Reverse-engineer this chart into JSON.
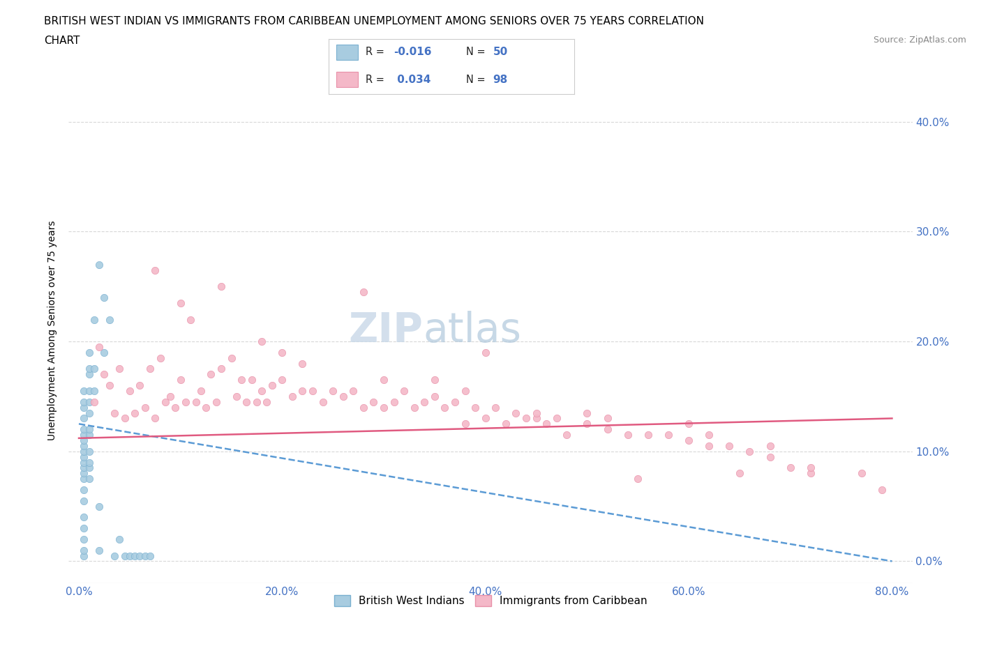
{
  "title_line1": "BRITISH WEST INDIAN VS IMMIGRANTS FROM CARIBBEAN UNEMPLOYMENT AMONG SENIORS OVER 75 YEARS CORRELATION",
  "title_line2": "CHART",
  "source_text": "Source: ZipAtlas.com",
  "ylabel": "Unemployment Among Seniors over 75 years",
  "xlim": [
    -0.01,
    0.82
  ],
  "ylim": [
    -0.02,
    0.44
  ],
  "xticks": [
    0.0,
    0.2,
    0.4,
    0.6,
    0.8
  ],
  "xticklabels": [
    "0.0%",
    "20.0%",
    "40.0%",
    "60.0%",
    "80.0%"
  ],
  "yticks": [
    0.0,
    0.1,
    0.2,
    0.3,
    0.4
  ],
  "yticklabels": [
    "0.0%",
    "10.0%",
    "20.0%",
    "30.0%",
    "40.0%"
  ],
  "blue_color": "#a8cce0",
  "pink_color": "#f4b8c8",
  "blue_edge_color": "#7ab0d0",
  "pink_edge_color": "#e890a8",
  "blue_line_color": "#5b9bd5",
  "pink_line_color": "#e05a80",
  "tick_color": "#4472c4",
  "watermark_zip": "ZIP",
  "watermark_atlas": "atlas",
  "legend_label_blue": "British West Indians",
  "legend_label_pink": "Immigrants from Caribbean",
  "blue_scatter_x": [
    0.005,
    0.005,
    0.005,
    0.005,
    0.005,
    0.005,
    0.005,
    0.005,
    0.005,
    0.005,
    0.005,
    0.005,
    0.005,
    0.005,
    0.005,
    0.005,
    0.005,
    0.005,
    0.005,
    0.005,
    0.005,
    0.01,
    0.01,
    0.01,
    0.01,
    0.01,
    0.01,
    0.01,
    0.01,
    0.01,
    0.01,
    0.01,
    0.01,
    0.015,
    0.015,
    0.015,
    0.02,
    0.02,
    0.02,
    0.025,
    0.025,
    0.03,
    0.035,
    0.04,
    0.045,
    0.05,
    0.055,
    0.06,
    0.065,
    0.07
  ],
  "blue_scatter_y": [
    0.005,
    0.01,
    0.02,
    0.03,
    0.04,
    0.055,
    0.065,
    0.075,
    0.08,
    0.085,
    0.09,
    0.095,
    0.1,
    0.105,
    0.11,
    0.115,
    0.12,
    0.13,
    0.14,
    0.145,
    0.155,
    0.075,
    0.085,
    0.09,
    0.1,
    0.115,
    0.12,
    0.135,
    0.145,
    0.155,
    0.17,
    0.175,
    0.19,
    0.155,
    0.175,
    0.22,
    0.01,
    0.05,
    0.27,
    0.19,
    0.24,
    0.22,
    0.005,
    0.02,
    0.005,
    0.005,
    0.005,
    0.005,
    0.005,
    0.005
  ],
  "pink_scatter_x": [
    0.015,
    0.02,
    0.025,
    0.03,
    0.035,
    0.04,
    0.045,
    0.05,
    0.055,
    0.06,
    0.065,
    0.07,
    0.075,
    0.08,
    0.085,
    0.09,
    0.095,
    0.1,
    0.105,
    0.11,
    0.115,
    0.12,
    0.125,
    0.13,
    0.135,
    0.14,
    0.15,
    0.155,
    0.16,
    0.165,
    0.17,
    0.175,
    0.18,
    0.185,
    0.19,
    0.2,
    0.21,
    0.22,
    0.23,
    0.24,
    0.25,
    0.26,
    0.27,
    0.28,
    0.29,
    0.3,
    0.31,
    0.32,
    0.33,
    0.34,
    0.35,
    0.36,
    0.37,
    0.38,
    0.39,
    0.4,
    0.41,
    0.42,
    0.43,
    0.44,
    0.45,
    0.46,
    0.47,
    0.48,
    0.5,
    0.52,
    0.54,
    0.56,
    0.58,
    0.6,
    0.62,
    0.64,
    0.66,
    0.68,
    0.7,
    0.14,
    0.18,
    0.22,
    0.3,
    0.38,
    0.45,
    0.52,
    0.6,
    0.68,
    0.1,
    0.2,
    0.35,
    0.5,
    0.62,
    0.72,
    0.075,
    0.28,
    0.4,
    0.55,
    0.65,
    0.72,
    0.77,
    0.79
  ],
  "pink_scatter_y": [
    0.145,
    0.195,
    0.17,
    0.16,
    0.135,
    0.175,
    0.13,
    0.155,
    0.135,
    0.16,
    0.14,
    0.175,
    0.13,
    0.185,
    0.145,
    0.15,
    0.14,
    0.165,
    0.145,
    0.22,
    0.145,
    0.155,
    0.14,
    0.17,
    0.145,
    0.175,
    0.185,
    0.15,
    0.165,
    0.145,
    0.165,
    0.145,
    0.155,
    0.145,
    0.16,
    0.165,
    0.15,
    0.155,
    0.155,
    0.145,
    0.155,
    0.15,
    0.155,
    0.14,
    0.145,
    0.14,
    0.145,
    0.155,
    0.14,
    0.145,
    0.15,
    0.14,
    0.145,
    0.125,
    0.14,
    0.13,
    0.14,
    0.125,
    0.135,
    0.13,
    0.13,
    0.125,
    0.13,
    0.115,
    0.125,
    0.12,
    0.115,
    0.115,
    0.115,
    0.11,
    0.105,
    0.105,
    0.1,
    0.095,
    0.085,
    0.25,
    0.2,
    0.18,
    0.165,
    0.155,
    0.135,
    0.13,
    0.125,
    0.105,
    0.235,
    0.19,
    0.165,
    0.135,
    0.115,
    0.08,
    0.265,
    0.245,
    0.19,
    0.075,
    0.08,
    0.085,
    0.08,
    0.065
  ],
  "blue_trend_x": [
    0.0,
    0.8
  ],
  "blue_trend_y_start": 0.125,
  "blue_trend_y_end": 0.0,
  "pink_trend_x": [
    0.0,
    0.8
  ],
  "pink_trend_y_start": 0.112,
  "pink_trend_y_end": 0.13,
  "title_fontsize": 11,
  "axis_tick_fontsize": 11,
  "ylabel_fontsize": 10,
  "watermark_fontsize_zip": 42,
  "watermark_fontsize_atlas": 42,
  "background_color": "#ffffff",
  "grid_color": "#d8d8d8",
  "source_fontsize": 9
}
